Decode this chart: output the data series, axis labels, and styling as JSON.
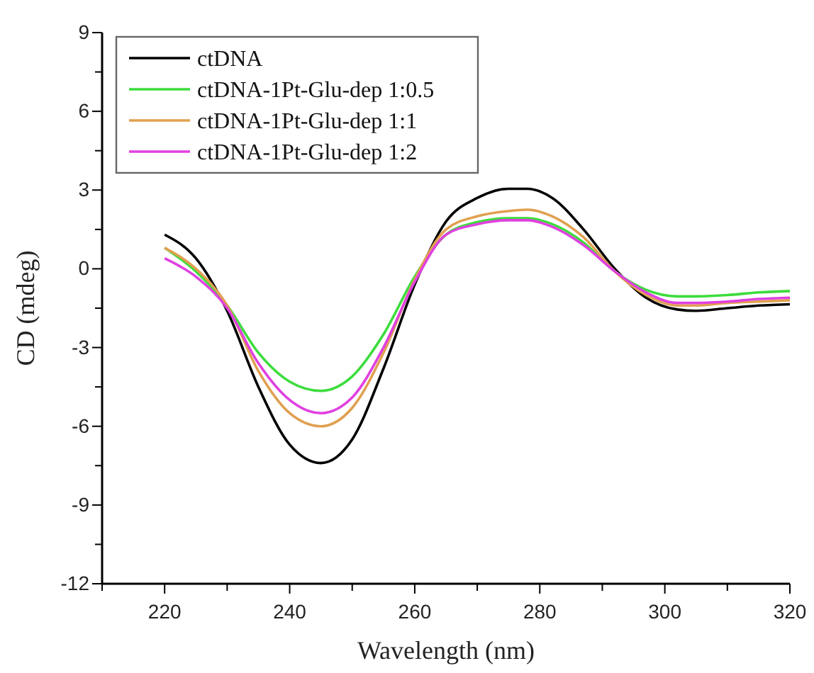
{
  "chart_data": {
    "type": "line",
    "xlabel": "Wavelength (nm)",
    "ylabel": "CD (mdeg)",
    "xlim": [
      210,
      320
    ],
    "xticks": [
      {
        "value": 210,
        "label": null
      },
      220,
      {
        "value": 230,
        "label": null
      },
      240,
      {
        "value": 250,
        "label": null
      },
      260,
      {
        "value": 270,
        "label": null
      },
      280,
      {
        "value": 290,
        "label": null
      },
      300,
      {
        "value": 310,
        "label": null
      },
      320
    ],
    "ylim": [
      -12,
      9
    ],
    "yticks": [
      -12,
      {
        "value": -10.5,
        "label": null
      },
      -9,
      {
        "value": -7.5,
        "label": null
      },
      -6,
      {
        "value": -4.5,
        "label": null
      },
      -3,
      {
        "value": -1.5,
        "label": null
      },
      0,
      {
        "value": 1.5,
        "label": null
      },
      3,
      {
        "value": 4.5,
        "label": null
      },
      6,
      {
        "value": 7.5,
        "label": null
      },
      9
    ],
    "grid": false,
    "legend": "top left",
    "line_style": "solid",
    "marker": "none",
    "x": [
      220,
      225,
      230,
      235,
      240,
      245,
      250,
      255,
      260,
      265,
      270,
      275,
      278,
      282,
      287,
      292,
      297,
      302,
      305,
      310,
      315,
      320
    ],
    "series": [
      {
        "name": "ctDNA",
        "color": "#000000",
        "values": [
          1.3,
          0.4,
          -1.6,
          -4.5,
          -6.7,
          -7.4,
          -6.5,
          -3.8,
          -0.6,
          1.8,
          2.7,
          3.05,
          3.05,
          2.7,
          1.5,
          0.0,
          -1.1,
          -1.55,
          -1.6,
          -1.5,
          -1.4,
          -1.35
        ]
      },
      {
        "name": "ctDNA-1Pt-Glu-dep 1:0.5",
        "color": "#3ddc3d",
        "values": [
          0.8,
          -0.1,
          -1.4,
          -3.2,
          -4.3,
          -4.65,
          -4.1,
          -2.5,
          -0.3,
          1.3,
          1.78,
          1.93,
          1.93,
          1.7,
          1.0,
          -0.1,
          -0.8,
          -1.05,
          -1.05,
          -1.0,
          -0.9,
          -0.85
        ]
      },
      {
        "name": "ctDNA-1Pt-Glu-dep 1:1",
        "color": "#e0a050",
        "values": [
          0.8,
          0.0,
          -1.4,
          -3.9,
          -5.5,
          -6.0,
          -5.3,
          -3.2,
          -0.4,
          1.5,
          2.0,
          2.2,
          2.25,
          2.0,
          1.2,
          -0.1,
          -1.0,
          -1.4,
          -1.4,
          -1.3,
          -1.25,
          -1.2
        ]
      },
      {
        "name": "ctDNA-1Pt-Glu-dep 1:2",
        "color": "#e040e0",
        "values": [
          0.4,
          -0.3,
          -1.5,
          -3.6,
          -5.0,
          -5.5,
          -4.9,
          -3.0,
          -0.5,
          1.3,
          1.7,
          1.85,
          1.85,
          1.6,
          0.9,
          -0.1,
          -0.9,
          -1.3,
          -1.3,
          -1.25,
          -1.15,
          -1.1
        ]
      }
    ]
  }
}
